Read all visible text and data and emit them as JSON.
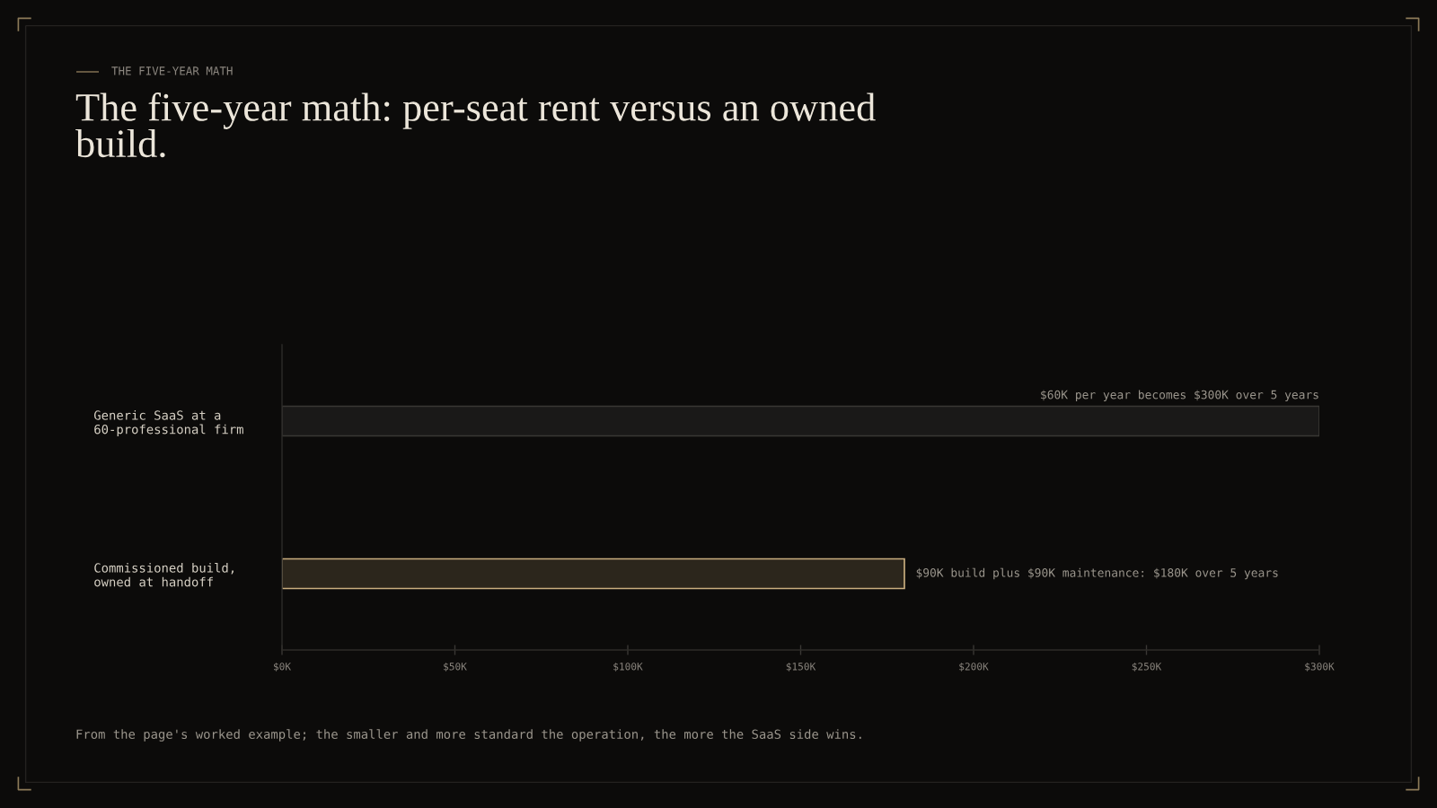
{
  "chart_data": {
    "type": "bar",
    "orientation": "horizontal",
    "subtitle": "THE FIVE-YEAR MATH",
    "title": "The five-year math: per-seat rent versus an owned build.",
    "categories": [
      "Generic SaaS at a 60-professional firm",
      "Commissioned build, owned at handoff"
    ],
    "values": [
      300,
      180
    ],
    "colors": [
      "#1a1918",
      "#2c261c"
    ],
    "xlim": [
      0,
      300
    ],
    "xticks": [
      {
        "value": 0,
        "label": "$0K"
      },
      {
        "value": 50,
        "label": "$50K"
      },
      {
        "value": 100,
        "label": "$100K"
      },
      {
        "value": 150,
        "label": "$150K"
      },
      {
        "value": 200,
        "label": "$200K"
      },
      {
        "value": 250,
        "label": "$250K"
      },
      {
        "value": 300,
        "label": "$300K"
      }
    ],
    "annotations": [
      "$60K per year becomes $300K over 5 years",
      "$90K build plus $90K maintenance: $180K over 5 years",
      "From the page's worked example; the smaller and more standard the operation, the more the SaaS side wins."
    ]
  }
}
